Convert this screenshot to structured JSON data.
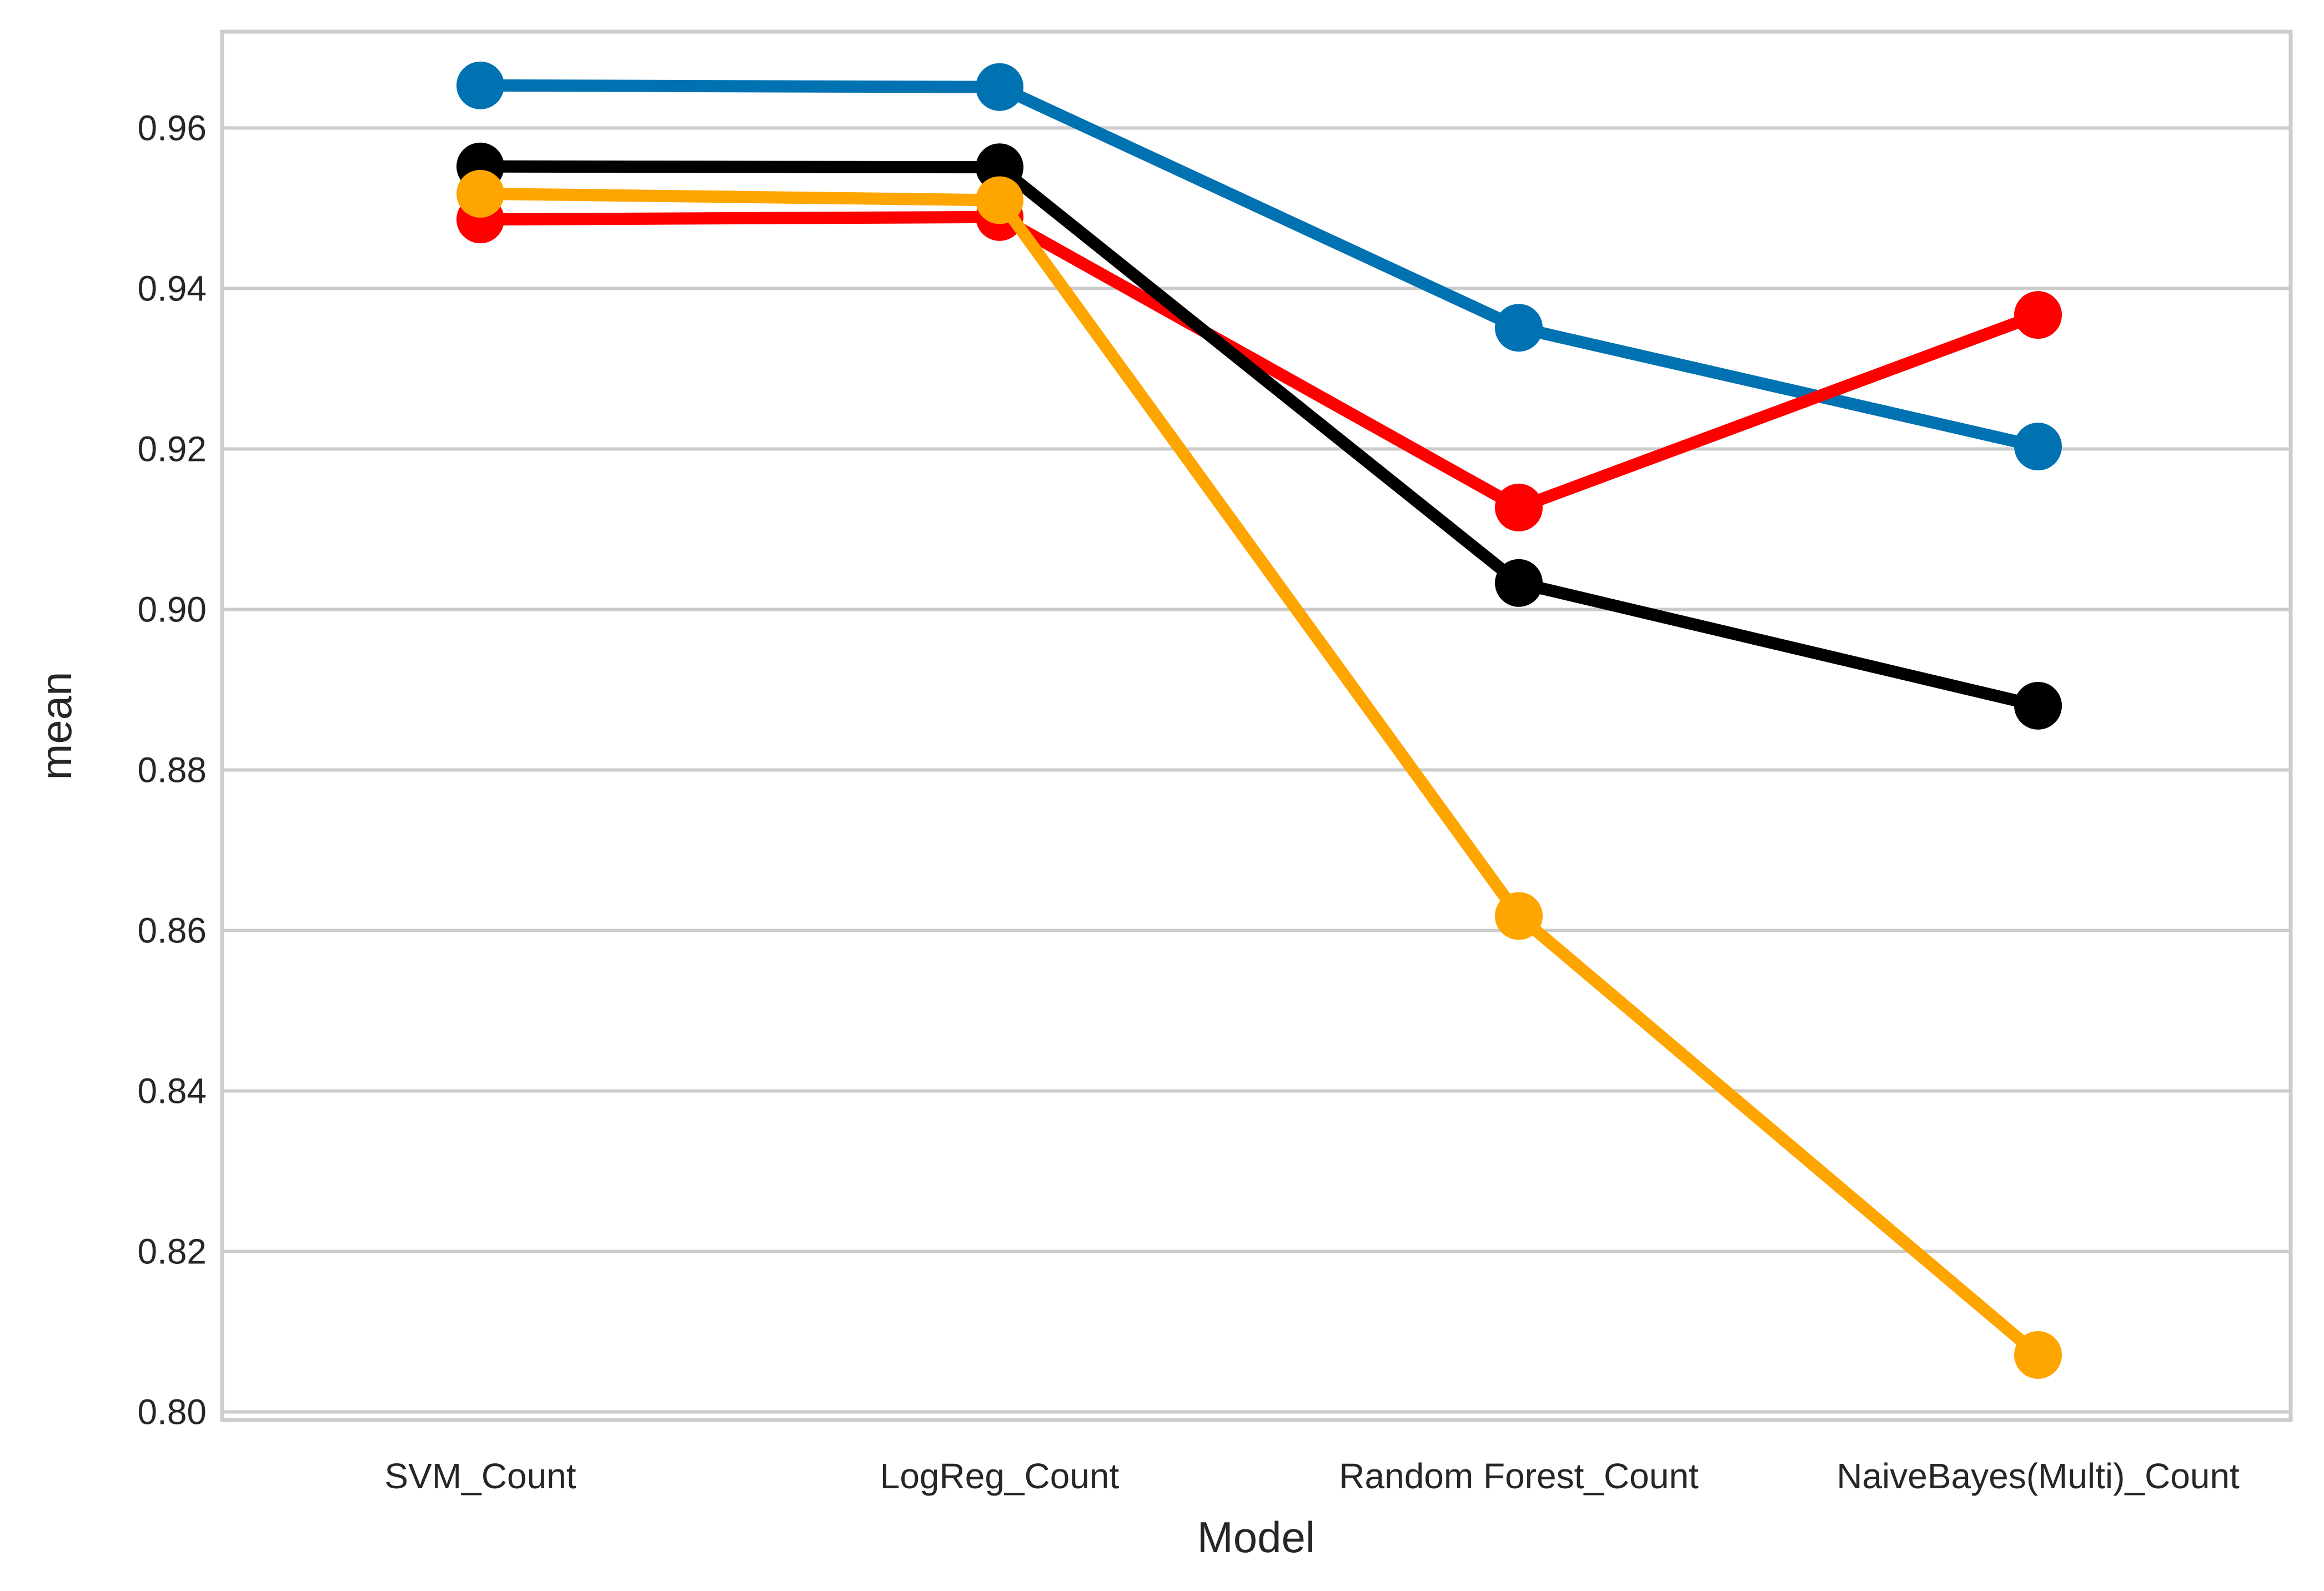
{
  "chart_data": {
    "type": "line",
    "title": "",
    "xlabel": "Model",
    "ylabel": "mean",
    "categories": [
      "SVM_Count",
      "LogReg_Count",
      "Random Forest_Count",
      "NaiveBayes(Multi)_Count"
    ],
    "ylim": [
      0.799,
      0.972
    ],
    "yticks": [
      0.8,
      0.82,
      0.84,
      0.86,
      0.88,
      0.9,
      0.92,
      0.94,
      0.96
    ],
    "grid": "horizontal",
    "legend": "none",
    "series": [
      {
        "color": "#0072B2",
        "values": [
          0.9653,
          0.9651,
          0.9351,
          0.9203
        ]
      },
      {
        "color": "#FF0000",
        "values": [
          0.9486,
          0.9489,
          0.9127,
          0.9367
        ]
      },
      {
        "color": "#000000",
        "values": [
          0.9552,
          0.9551,
          0.9033,
          0.888
        ]
      },
      {
        "color": "#FFA500",
        "values": [
          0.9518,
          0.951,
          0.8618,
          0.8071
        ]
      }
    ]
  }
}
